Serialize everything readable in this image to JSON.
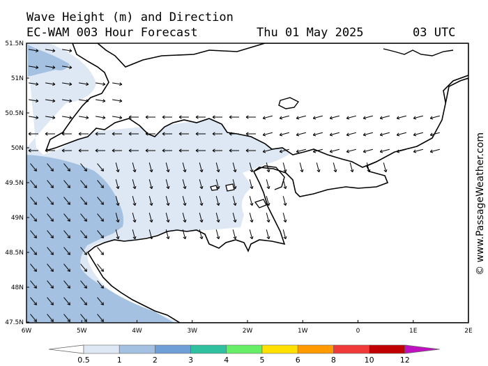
{
  "header": {
    "line1": "Wave Height (m) and Direction",
    "model": "EC-WAM 003 Hour Forecast",
    "date": "Thu 01 May 2025",
    "time": "03 UTC"
  },
  "side_label": "© www.PassageWeather.com",
  "axes": {
    "lat_labels": [
      "51.5N",
      "51N",
      "50.5N",
      "50N",
      "49.5N",
      "49N",
      "48.5N",
      "48N",
      "47.5N"
    ],
    "lon_labels": [
      "6W",
      "5W",
      "4W",
      "3W",
      "2W",
      "1W",
      "0",
      "1E",
      "2E"
    ]
  },
  "colorbar": {
    "labels": [
      "0.5",
      "1",
      "2",
      "3",
      "4",
      "5",
      "6",
      "8",
      "10",
      "12"
    ],
    "colors": [
      "#dde8f4",
      "#a4c1e2",
      "#6f9fd6",
      "#2fc0a0",
      "#66ee66",
      "#ffe000",
      "#ff9a00",
      "#f03a3a",
      "#c00000",
      "#c010c0"
    ]
  },
  "legend_colors": {
    "band_0_5_1": "#dde8f4",
    "band_1_2": "#a4c1e2",
    "land": "#ffffff",
    "coast": "#000000"
  }
}
